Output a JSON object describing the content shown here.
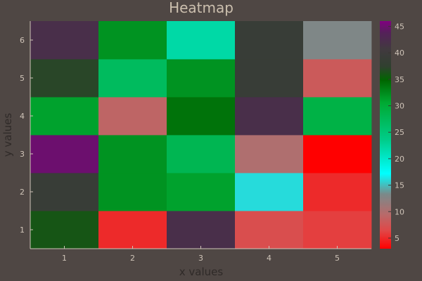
{
  "chart_data": {
    "type": "heatmap",
    "title": "Heatmap",
    "xlabel": "x values",
    "ylabel": "y values",
    "x": [
      1,
      2,
      3,
      4,
      5
    ],
    "y": [
      1,
      2,
      3,
      4,
      5,
      6
    ],
    "z": [
      [
        36,
        5,
        42,
        7,
        6
      ],
      [
        39,
        32,
        31,
        16,
        5
      ],
      [
        45,
        32,
        28,
        10,
        3
      ],
      [
        31,
        9,
        34,
        42,
        29
      ],
      [
        37,
        27,
        32,
        39,
        8
      ],
      [
        42,
        32,
        22,
        39,
        13
      ]
    ],
    "colorbar": {
      "ticks": [
        5,
        10,
        15,
        20,
        25,
        30,
        35,
        40,
        45
      ],
      "range": [
        3,
        46
      ]
    },
    "colorscale": [
      [
        0.0,
        "#ff0000"
      ],
      [
        0.08,
        "#e04848"
      ],
      [
        0.15,
        "#b86a6a"
      ],
      [
        0.24,
        "#7a8a8a"
      ],
      [
        0.33,
        "#00ffff"
      ],
      [
        0.48,
        "#00cc88"
      ],
      [
        0.64,
        "#00aa33"
      ],
      [
        0.74,
        "#006600"
      ],
      [
        0.8,
        "#30402f"
      ],
      [
        0.88,
        "#423940"
      ],
      [
        0.95,
        "#55205a"
      ],
      [
        1.0,
        "#800080"
      ]
    ],
    "grid": false
  }
}
